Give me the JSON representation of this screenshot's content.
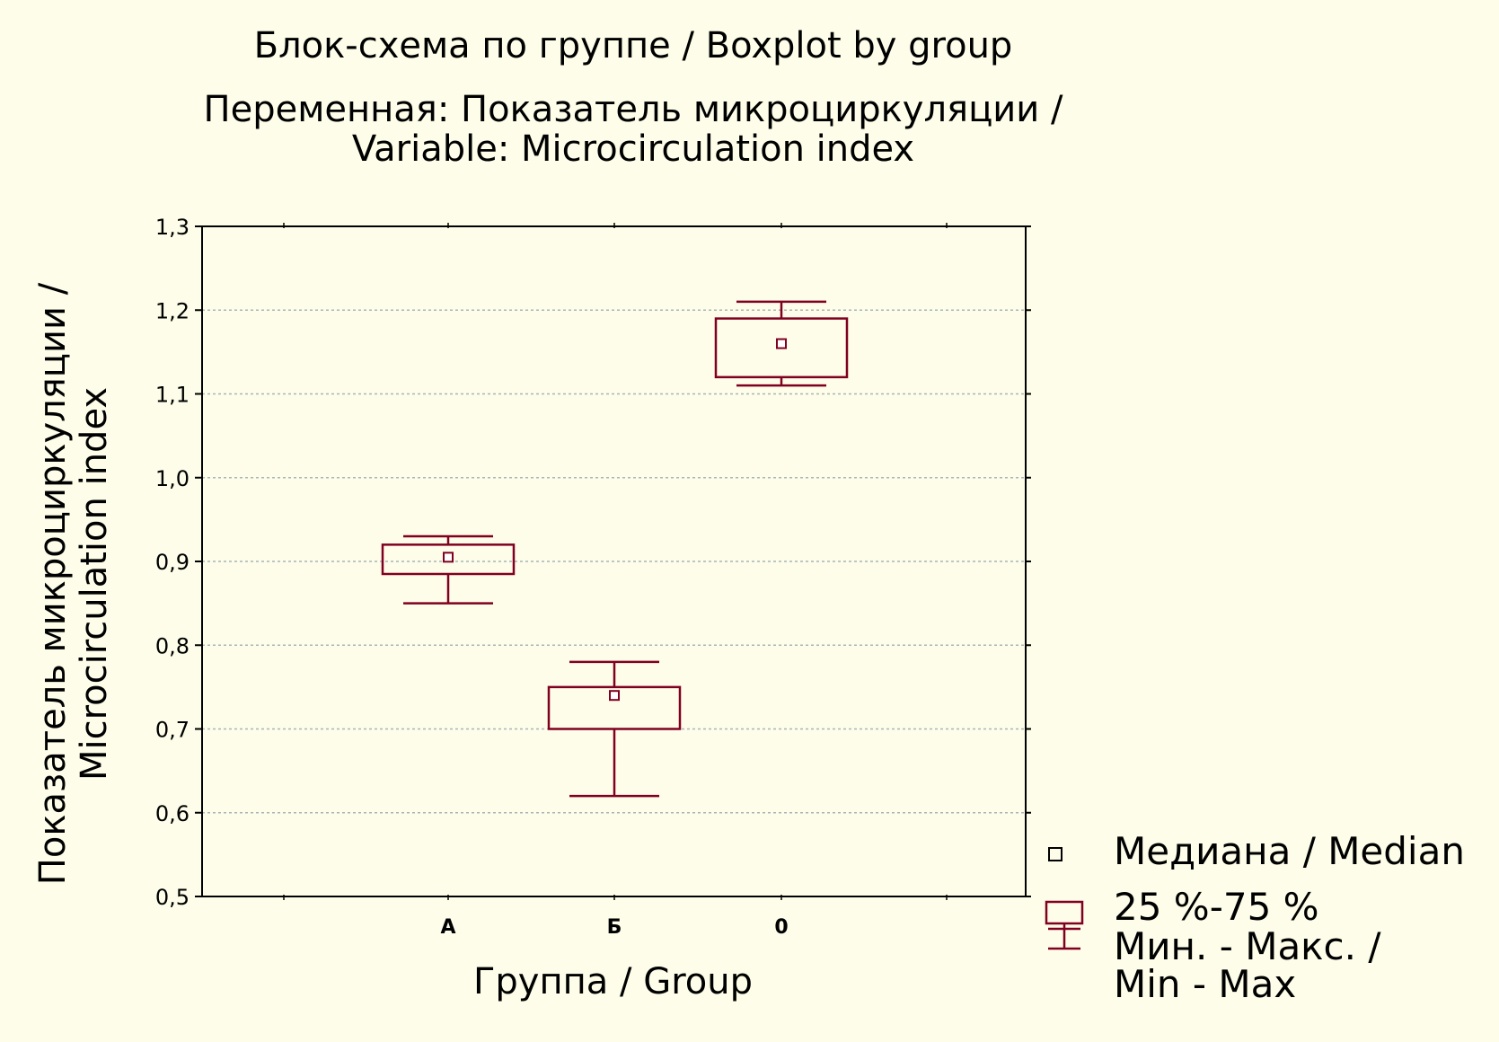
{
  "chart_data": {
    "type": "box",
    "title": "Блок-схема по группе / Boxplot by group",
    "subtitle_line1": "Переменная: Показатель микроциркуляции /",
    "subtitle_line2": "Variable: Microcirculation index",
    "xlabel": "Группа / Group",
    "ylabel_line1": "Показатель микроциркуляции /",
    "ylabel_line2": "Microcirculation index",
    "ylim": [
      0.5,
      1.3
    ],
    "yticks": [
      "0,5",
      "0,6",
      "0,7",
      "0,8",
      "0,9",
      "1,0",
      "1,1",
      "1,2",
      "1,3"
    ],
    "ytick_values": [
      0.5,
      0.6,
      0.7,
      0.8,
      0.9,
      1.0,
      1.1,
      1.2,
      1.3
    ],
    "grid": true,
    "color": "#800020",
    "categories": [
      "А",
      "Б",
      "0"
    ],
    "groups": [
      {
        "category": "А",
        "min": 0.85,
        "q1": 0.885,
        "median": 0.905,
        "q3": 0.92,
        "max": 0.93
      },
      {
        "category": "Б",
        "min": 0.62,
        "q1": 0.7,
        "median": 0.74,
        "q3": 0.75,
        "max": 0.78
      },
      {
        "category": "0",
        "min": 1.11,
        "q1": 1.12,
        "median": 1.16,
        "q3": 1.19,
        "max": 1.21
      }
    ],
    "legend": {
      "position": "bottom-right",
      "median": "Медиана / Median",
      "box": "25 %-75 %",
      "range_line1": "Мин. - Макс. /",
      "range_line2": "Min - Max"
    }
  }
}
